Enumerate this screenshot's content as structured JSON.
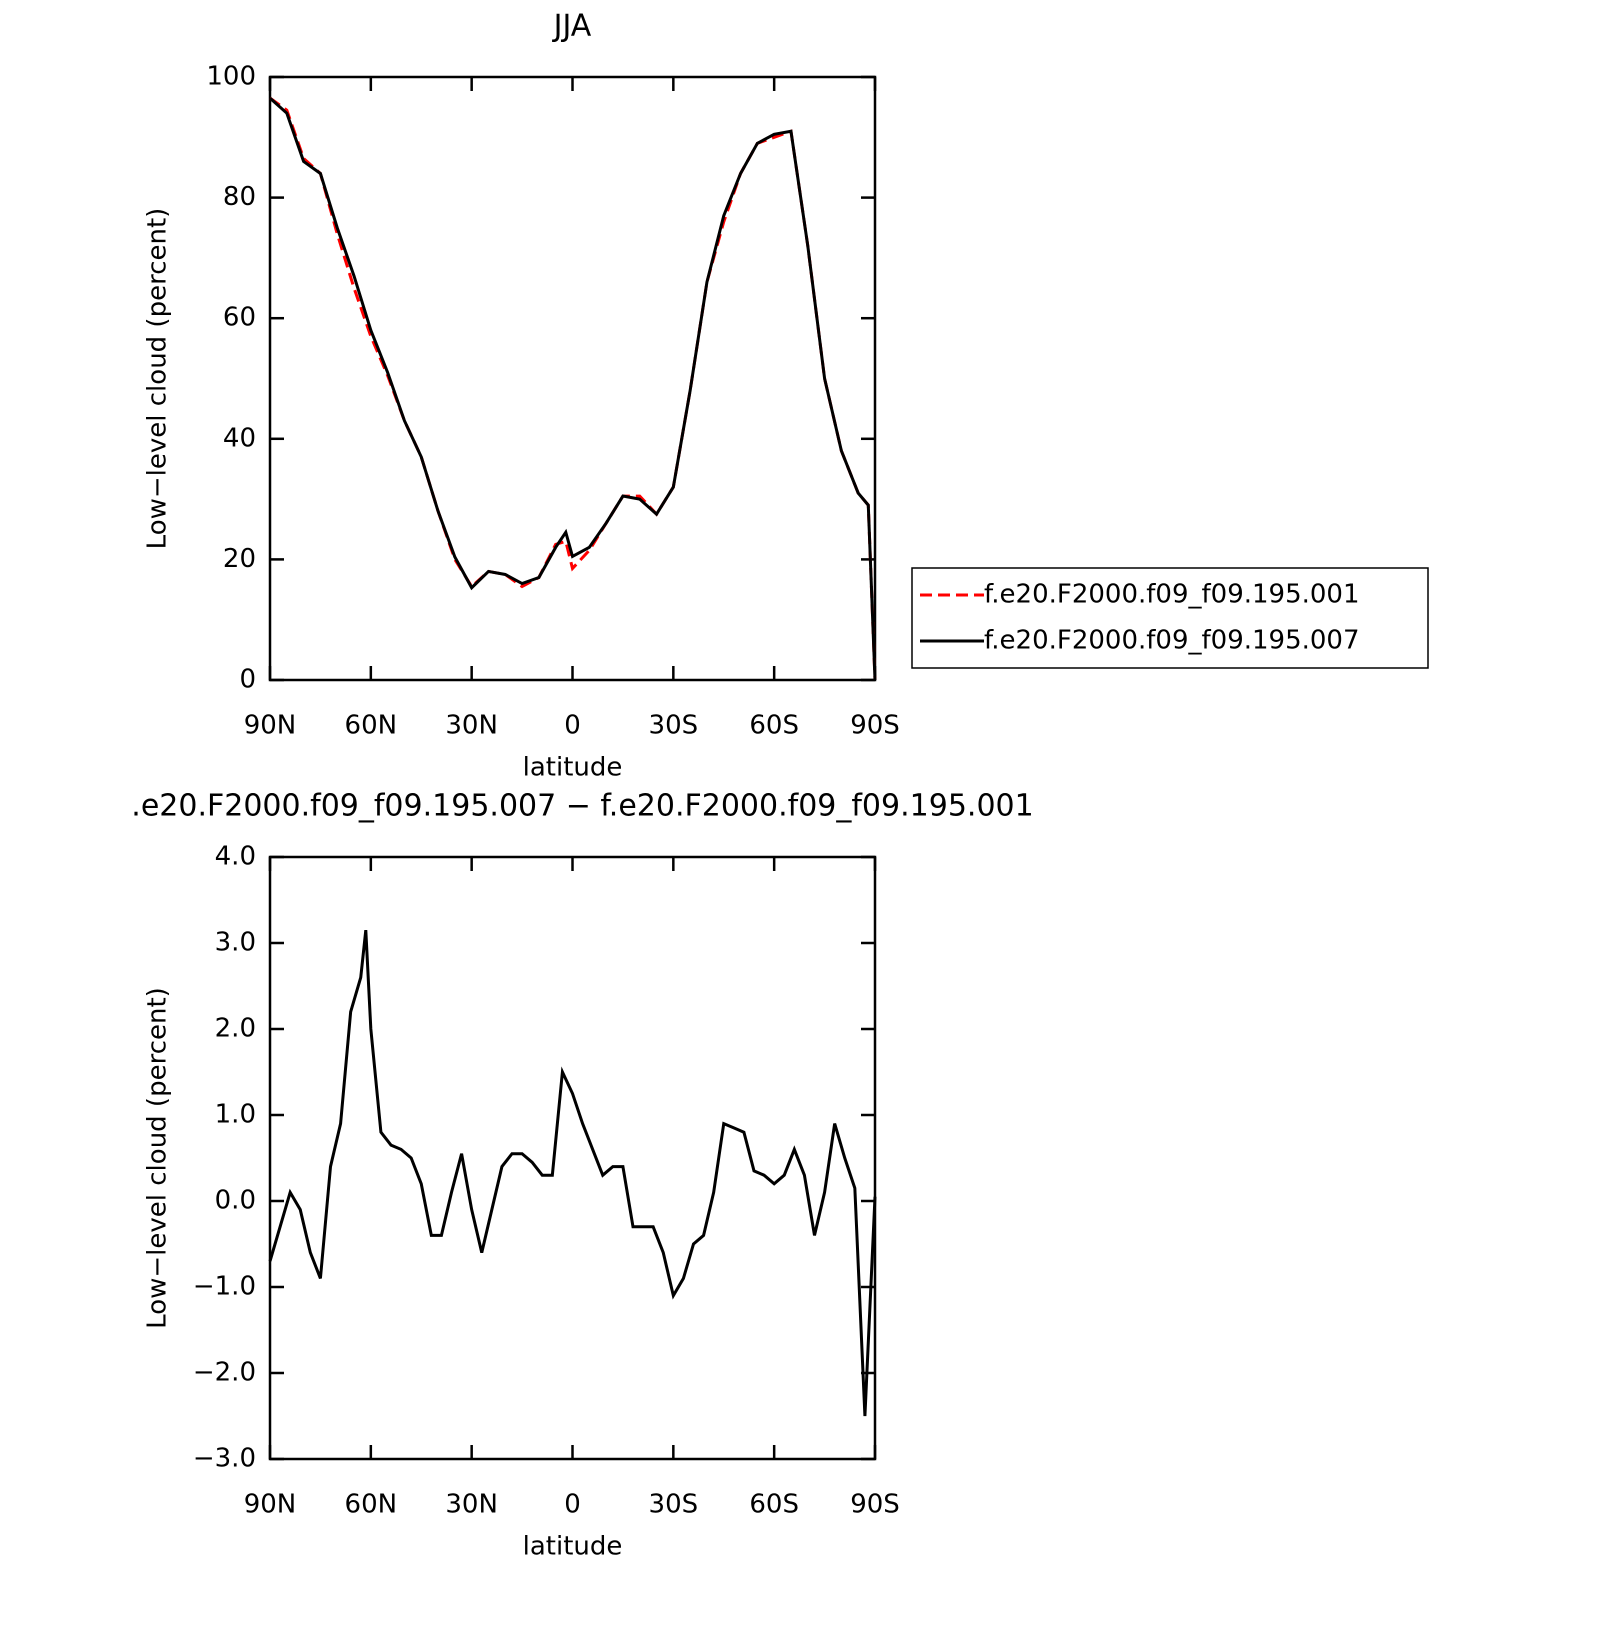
{
  "chart_data": [
    {
      "type": "line",
      "title": "JJA",
      "xlabel": "latitude",
      "ylabel": "Low−level cloud (percent)",
      "x": [
        90,
        85,
        80,
        75,
        70,
        65,
        60,
        55,
        50,
        45,
        40,
        35,
        30,
        25,
        20,
        15,
        10,
        5,
        2,
        0,
        -5,
        -10,
        -15,
        -20,
        -25,
        -30,
        -35,
        -40,
        -45,
        -50,
        -55,
        -60,
        -65,
        -70,
        -75,
        -80,
        -85,
        -88,
        -90
      ],
      "series": [
        {
          "name": "f.e20.F2000.f09_f09.195.001",
          "color": "#ff0000",
          "style": "dashed",
          "values": [
            96.5,
            94.5,
            86.5,
            84,
            74,
            65,
            57,
            50.5,
            43,
            37,
            28,
            20,
            15.5,
            18,
            17.5,
            15.5,
            17,
            22.5,
            23,
            18.5,
            21.5,
            26,
            30.5,
            30.5,
            27.5,
            32,
            48,
            66,
            76,
            84,
            89,
            90,
            91,
            72,
            50,
            38,
            31,
            29,
            0
          ]
        },
        {
          "name": "f.e20.F2000.f09_f09.195.007",
          "color": "#000000",
          "style": "solid",
          "values": [
            96.5,
            94,
            86,
            84,
            75,
            67,
            58,
            51,
            43,
            37,
            28,
            20.4,
            15.3,
            18,
            17.5,
            16,
            17,
            22,
            24.5,
            20.5,
            22,
            26,
            30.5,
            30,
            27.5,
            32,
            48,
            66,
            77,
            84,
            89,
            90.5,
            91,
            72,
            50,
            38,
            31,
            29,
            0
          ]
        }
      ],
      "xlim": [
        90,
        -90
      ],
      "xticks": [
        {
          "value": 90,
          "label": "90N"
        },
        {
          "value": 60,
          "label": "60N"
        },
        {
          "value": 30,
          "label": "30N"
        },
        0,
        {
          "value": -30,
          "label": "30S"
        },
        {
          "value": -60,
          "label": "60S"
        },
        {
          "value": -90,
          "label": "90S"
        }
      ],
      "ylim": [
        0,
        100
      ],
      "yticks": [
        0,
        20,
        40,
        60,
        80,
        100
      ],
      "legend": "right"
    },
    {
      "type": "line",
      "title": ".e20.F2000.f09_f09.195.007 − f.e20.F2000.f09_f09.195.001",
      "xlabel": "latitude",
      "ylabel": "Low−level cloud (percent)",
      "x": [
        90,
        87,
        84,
        81,
        78,
        75,
        72,
        69,
        66,
        63,
        61.5,
        60,
        57,
        54,
        51,
        48,
        45,
        42,
        39,
        36,
        33,
        30,
        27,
        24,
        21,
        18,
        15,
        12,
        9,
        6,
        3,
        0,
        -3,
        -6,
        -9,
        -12,
        -15,
        -18,
        -21,
        -24,
        -27,
        -30,
        -33,
        -36,
        -39,
        -42,
        -45,
        -48,
        -51,
        -54,
        -57,
        -60,
        -63,
        -66,
        -69,
        -72,
        -75,
        -78,
        -81,
        -84,
        -87,
        -90
      ],
      "series": [
        {
          "color": "#000000",
          "style": "solid",
          "values": [
            -0.7,
            -0.3,
            0.1,
            -0.1,
            -0.6,
            -0.9,
            0.4,
            0.9,
            2.2,
            2.6,
            3.15,
            2.0,
            0.8,
            0.65,
            0.6,
            0.5,
            0.2,
            -0.4,
            -0.4,
            0.1,
            0.55,
            -0.1,
            -0.6,
            -0.1,
            0.4,
            0.55,
            0.55,
            0.45,
            0.3,
            0.3,
            1.5,
            1.25,
            0.9,
            0.6,
            0.3,
            0.4,
            0.4,
            -0.3,
            -0.3,
            -0.3,
            -0.6,
            -1.1,
            -0.9,
            -0.5,
            -0.4,
            0.1,
            0.9,
            0.85,
            0.8,
            0.35,
            0.3,
            0.2,
            0.3,
            0.6,
            0.3,
            -0.4,
            0.1,
            0.9,
            0.5,
            0.15,
            -2.5,
            0.05
          ]
        }
      ],
      "xlim": [
        90,
        -90
      ],
      "xticks": [
        {
          "value": 90,
          "label": "90N"
        },
        {
          "value": 60,
          "label": "60N"
        },
        {
          "value": 30,
          "label": "30N"
        },
        0,
        {
          "value": -30,
          "label": "30S"
        },
        {
          "value": -60,
          "label": "60S"
        },
        {
          "value": -90,
          "label": "90S"
        }
      ],
      "ylim": [
        -3,
        4
      ],
      "yticks": [
        {
          "value": -3,
          "label": "−3.0"
        },
        {
          "value": -2,
          "label": "−2.0"
        },
        {
          "value": -1,
          "label": "−1.0"
        },
        {
          "value": 0,
          "label": "0.0"
        },
        {
          "value": 1,
          "label": "1.0"
        },
        {
          "value": 2,
          "label": "2.0"
        },
        {
          "value": 3,
          "label": "3.0"
        },
        {
          "value": 4,
          "label": "4.0"
        }
      ]
    }
  ]
}
